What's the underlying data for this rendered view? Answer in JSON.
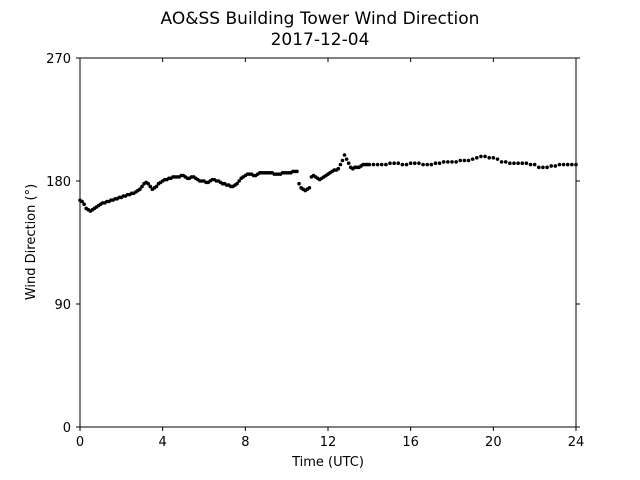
{
  "chart_data": {
    "type": "scatter",
    "title": "AO&SS Building Tower Wind Direction",
    "subtitle": "2017-12-04",
    "xlabel": "Time (UTC)",
    "ylabel": "Wind Direction (°)",
    "xlim": [
      0,
      24
    ],
    "ylim": [
      0,
      270
    ],
    "xticks": [
      0,
      4,
      8,
      12,
      16,
      20,
      24
    ],
    "yticks": [
      0,
      90,
      180,
      270
    ],
    "grid": false,
    "legend": "none",
    "marker_color": "#000000",
    "x": [
      0.0,
      0.1,
      0.2,
      0.3,
      0.4,
      0.5,
      0.6,
      0.7,
      0.8,
      0.9,
      1.0,
      1.1,
      1.2,
      1.3,
      1.4,
      1.5,
      1.6,
      1.7,
      1.8,
      1.9,
      2.0,
      2.1,
      2.2,
      2.3,
      2.4,
      2.5,
      2.6,
      2.7,
      2.8,
      2.9,
      3.0,
      3.1,
      3.2,
      3.3,
      3.4,
      3.5,
      3.6,
      3.7,
      3.8,
      3.9,
      4.0,
      4.1,
      4.2,
      4.3,
      4.4,
      4.5,
      4.6,
      4.7,
      4.8,
      4.9,
      5.0,
      5.1,
      5.2,
      5.3,
      5.4,
      5.5,
      5.6,
      5.7,
      5.8,
      5.9,
      6.0,
      6.1,
      6.2,
      6.3,
      6.4,
      6.5,
      6.6,
      6.7,
      6.8,
      6.9,
      7.0,
      7.1,
      7.2,
      7.3,
      7.4,
      7.5,
      7.6,
      7.7,
      7.8,
      7.9,
      8.0,
      8.1,
      8.2,
      8.3,
      8.4,
      8.5,
      8.6,
      8.7,
      8.8,
      8.9,
      9.0,
      9.1,
      9.2,
      9.3,
      9.4,
      9.5,
      9.6,
      9.7,
      9.8,
      9.9,
      10.0,
      10.1,
      10.2,
      10.3,
      10.4,
      10.5,
      10.6,
      10.7,
      10.8,
      10.9,
      11.0,
      11.1,
      11.2,
      11.3,
      11.4,
      11.5,
      11.6,
      11.7,
      11.8,
      11.9,
      12.0,
      12.1,
      12.2,
      12.3,
      12.4,
      12.5,
      12.6,
      12.7,
      12.8,
      12.9,
      13.0,
      13.1,
      13.2,
      13.3,
      13.4,
      13.5,
      13.6,
      13.7,
      13.8,
      13.9,
      14.0,
      14.2,
      14.4,
      14.6,
      14.8,
      15.0,
      15.2,
      15.4,
      15.6,
      15.8,
      16.0,
      16.2,
      16.4,
      16.6,
      16.8,
      17.0,
      17.2,
      17.4,
      17.6,
      17.8,
      18.0,
      18.2,
      18.4,
      18.6,
      18.8,
      19.0,
      19.2,
      19.4,
      19.6,
      19.8,
      20.0,
      20.2,
      20.4,
      20.6,
      20.8,
      21.0,
      21.2,
      21.4,
      21.6,
      21.8,
      22.0,
      22.2,
      22.4,
      22.6,
      22.8,
      23.0,
      23.2,
      23.4,
      23.6,
      23.8,
      24.0
    ],
    "y": [
      166,
      165,
      163,
      160,
      159,
      158,
      159,
      160,
      161,
      162,
      163,
      164,
      164,
      165,
      165,
      166,
      166,
      167,
      167,
      168,
      168,
      169,
      169,
      170,
      170,
      171,
      171,
      172,
      173,
      174,
      176,
      178,
      179,
      178,
      176,
      174,
      175,
      176,
      178,
      179,
      180,
      181,
      181,
      182,
      182,
      183,
      183,
      183,
      183,
      184,
      184,
      183,
      182,
      182,
      183,
      183,
      182,
      181,
      180,
      180,
      180,
      179,
      179,
      180,
      181,
      181,
      180,
      180,
      179,
      178,
      178,
      177,
      177,
      176,
      176,
      177,
      178,
      180,
      182,
      183,
      184,
      185,
      185,
      185,
      184,
      184,
      185,
      186,
      186,
      186,
      186,
      186,
      186,
      186,
      185,
      185,
      185,
      185,
      186,
      186,
      186,
      186,
      186,
      187,
      187,
      187,
      178,
      175,
      174,
      173,
      174,
      175,
      183,
      184,
      183,
      182,
      181,
      182,
      183,
      184,
      185,
      186,
      187,
      188,
      188,
      189,
      192,
      195,
      199,
      196,
      193,
      190,
      189,
      190,
      190,
      190,
      191,
      192,
      192,
      192,
      192,
      192,
      192,
      192,
      192,
      193,
      193,
      193,
      192,
      192,
      193,
      193,
      193,
      192,
      192,
      192,
      193,
      193,
      194,
      194,
      194,
      194,
      195,
      195,
      195,
      196,
      197,
      198,
      198,
      197,
      197,
      196,
      194,
      194,
      193,
      193,
      193,
      193,
      193,
      192,
      192,
      190,
      190,
      190,
      191,
      191,
      192,
      192,
      192,
      192,
      192
    ]
  }
}
